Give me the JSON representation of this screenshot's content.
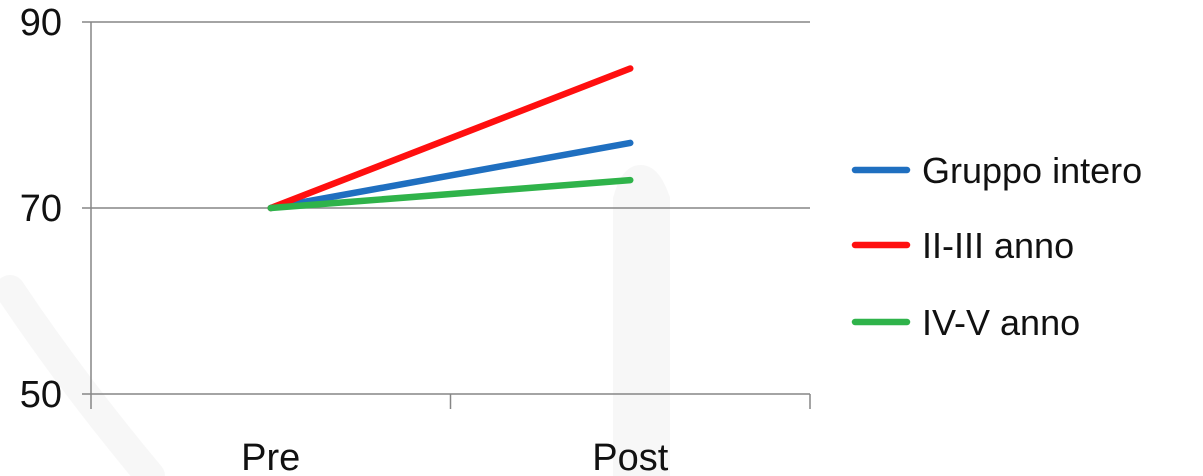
{
  "chart_data": {
    "type": "line",
    "title": "",
    "xlabel": "",
    "ylabel": "",
    "categories": [
      "Pre",
      "Post"
    ],
    "ylim": [
      50,
      90
    ],
    "yticks": [
      50,
      70,
      90
    ],
    "grid": true,
    "legend_position": "right",
    "series": [
      {
        "name": "Gruppo intero",
        "color": "#1f6fc0",
        "values": [
          70,
          77
        ]
      },
      {
        "name": "II-III anno",
        "color": "#ff0f0f",
        "values": [
          70,
          85
        ]
      },
      {
        "name": "IV-V anno",
        "color": "#2fb34a",
        "values": [
          70,
          73
        ]
      }
    ]
  }
}
